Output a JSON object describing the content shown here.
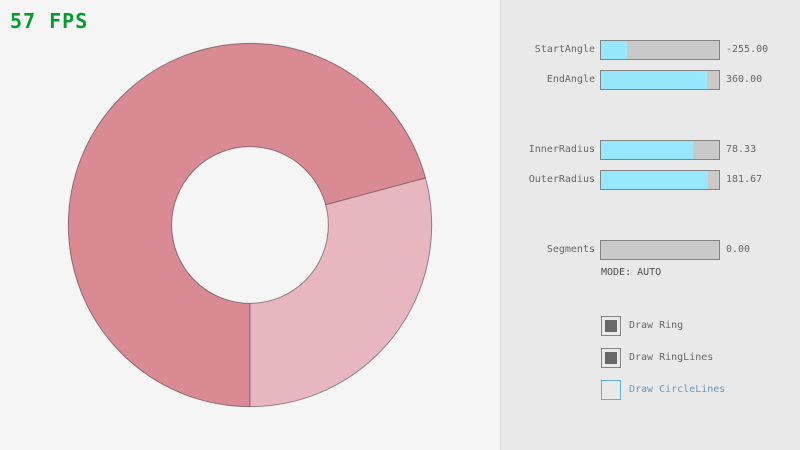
{
  "app": {
    "fps_label": "57 FPS"
  },
  "colors": {
    "fps_text": "#009e2f",
    "canvas_bg": "#f5f5f5",
    "panel_bg": "#e9e9e9",
    "panel_divider": "#d8d8d8",
    "ring_dark": "#d98a93",
    "ring_light": "#e7b6be",
    "ring_outline": "rgba(0,0,0,0.4)",
    "slider_track": "#c9c9c9",
    "slider_fill": "#97e8ff",
    "control_border": "#838383",
    "text_normal": "#686868",
    "check_mark": "#686868",
    "focused_border": "#5bb2d9",
    "focused_text": "#6c9bbc",
    "mode_text": "#505050"
  },
  "ring": {
    "start_angle": -255,
    "end_angle": 360,
    "inner_radius": 78.33,
    "outer_radius": 181.67,
    "segments": 0,
    "mode": "AUTO"
  },
  "panel": {
    "sliders": [
      {
        "label": "StartAngle",
        "value": "-255.00",
        "fill_pct": "21.7%"
      },
      {
        "label": "EndAngle",
        "value": "360.00",
        "fill_pct": "90%"
      },
      {
        "label": "InnerRadius",
        "value": "78.33",
        "fill_pct": "78.3%"
      },
      {
        "label": "OuterRadius",
        "value": "181.67",
        "fill_pct": "90.8%"
      },
      {
        "label": "Segments",
        "value": "0.00",
        "fill_pct": "0%"
      }
    ],
    "mode_label": "MODE: AUTO",
    "checkboxes": [
      {
        "label": "Draw Ring",
        "checked": true
      },
      {
        "label": "Draw RingLines",
        "checked": true
      },
      {
        "label": "Draw CircleLines",
        "checked": false
      }
    ]
  }
}
